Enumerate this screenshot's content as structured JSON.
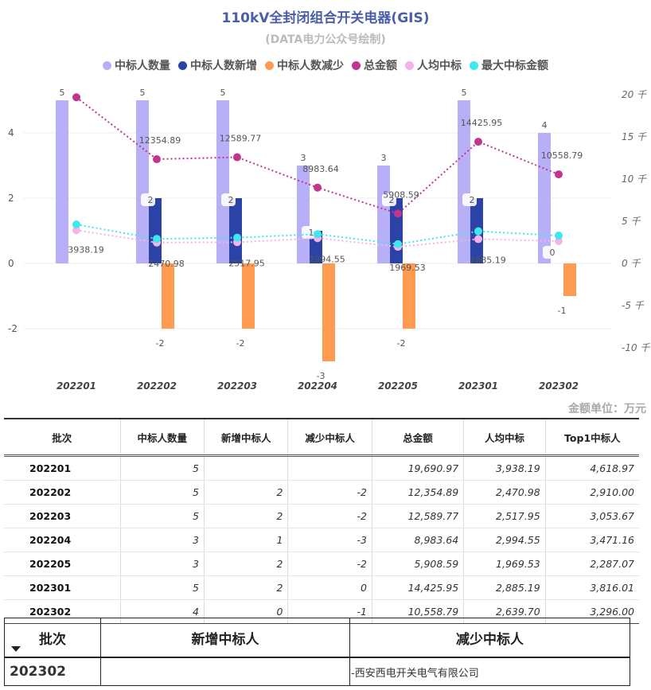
{
  "header": {
    "title": "110kV全封闭组合开关电器(GIS)",
    "subtitle": "(DATA电力公众号绘制)"
  },
  "legend": [
    {
      "label": "中标人数量",
      "color": "#b8b0f6"
    },
    {
      "label": "中标人数新增",
      "color": "#2b43a6"
    },
    {
      "label": "中标人数减少",
      "color": "#ff9b50"
    },
    {
      "label": "总金额",
      "color": "#c0368f"
    },
    {
      "label": "人均中标",
      "color": "#f7b3e8"
    },
    {
      "label": "最大中标金额",
      "color": "#3ee8ee"
    }
  ],
  "chart_data": {
    "type": "bar",
    "categories": [
      "202201",
      "202202",
      "202203",
      "202204",
      "202205",
      "202301",
      "202302"
    ],
    "left_axis": {
      "ticks": [
        "4",
        "2",
        "0",
        "-2"
      ],
      "ylim": [
        -3,
        5
      ]
    },
    "right_axis": {
      "ticks": [
        "20 千",
        "15 千",
        "10 千",
        "5 千",
        "0 千",
        "-5 千",
        "-10 千"
      ],
      "ylim": [
        -10,
        20
      ],
      "unit": "千"
    },
    "series": [
      {
        "name": "中标人数量",
        "type": "bar",
        "axis": "left",
        "values": [
          5,
          5,
          5,
          3,
          3,
          5,
          4
        ],
        "labels": [
          "5",
          "5",
          "5",
          "3",
          "3",
          "5",
          "4"
        ]
      },
      {
        "name": "中标人数新增",
        "type": "bar",
        "axis": "left",
        "values": [
          null,
          2,
          2,
          1,
          2,
          2,
          0
        ],
        "labels": [
          "",
          "2",
          "2",
          "1",
          "2",
          "2",
          "0"
        ]
      },
      {
        "name": "中标人数减少",
        "type": "bar",
        "axis": "left",
        "values": [
          null,
          -2,
          -2,
          -3,
          -2,
          0,
          -1
        ],
        "labels": [
          "",
          "-2",
          "-2",
          "-3",
          "-2",
          "",
          "-1"
        ]
      },
      {
        "name": "总金额",
        "type": "line",
        "axis": "right",
        "values": [
          19690.97,
          12354.89,
          12589.77,
          8983.64,
          5908.59,
          14425.95,
          10558.79
        ],
        "labels": [
          "",
          "12354.89",
          "12589.77",
          "8983.64",
          "5908.59",
          "14425.95",
          "10558.79"
        ]
      },
      {
        "name": "人均中标",
        "type": "line",
        "axis": "right",
        "values": [
          3938.19,
          2470.98,
          2517.95,
          2994.55,
          1969.53,
          2885.19,
          2639.7
        ],
        "labels": [
          "3938.19",
          "2470.98",
          "2517.95",
          "2994.55",
          "1969.53",
          "2885.19",
          ""
        ]
      },
      {
        "name": "最大中标金额",
        "type": "line",
        "axis": "right",
        "values": [
          4618.97,
          2910.0,
          3053.67,
          3471.16,
          2287.07,
          3816.01,
          3296.0
        ],
        "labels": []
      }
    ]
  },
  "unit_note": "金额单位：万元",
  "summary_table": {
    "columns": [
      "批次",
      "中标人数量",
      "新增中标人",
      "减少中标人",
      "总金额",
      "人均中标",
      "Top1中标人"
    ],
    "rows": [
      [
        "202201",
        "5",
        "",
        "",
        "19,690.97",
        "3,938.19",
        "4,618.97"
      ],
      [
        "202202",
        "5",
        "2",
        "-2",
        "12,354.89",
        "2,470.98",
        "2,910.00"
      ],
      [
        "202203",
        "5",
        "2",
        "-2",
        "12,589.77",
        "2,517.95",
        "3,053.67"
      ],
      [
        "202204",
        "3",
        "1",
        "-3",
        "8,983.64",
        "2,994.55",
        "3,471.16"
      ],
      [
        "202205",
        "3",
        "2",
        "-2",
        "5,908.59",
        "1,969.53",
        "2,287.07"
      ],
      [
        "202301",
        "5",
        "2",
        "0",
        "14,425.95",
        "2,885.19",
        "3,816.01"
      ],
      [
        "202302",
        "4",
        "0",
        "-1",
        "10,558.79",
        "2,639.70",
        "3,296.00"
      ]
    ]
  },
  "detail_table": {
    "columns": [
      "批次",
      "新增中标人",
      "减少中标人"
    ],
    "row": [
      "202302",
      "",
      "-西安西电开关电气有限公司"
    ]
  }
}
